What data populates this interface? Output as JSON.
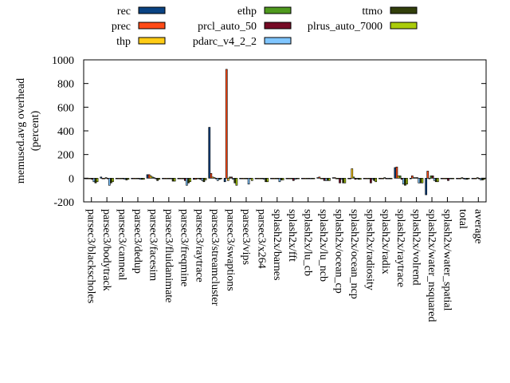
{
  "chart_data": {
    "type": "bar",
    "title": "",
    "xlabel": "",
    "ylabel": "memused.avg overhead\n(percent)",
    "ylabel_lines": [
      "memused.avg overhead",
      "(percent)"
    ],
    "ylim": [
      -200,
      1000
    ],
    "yticks": [
      -200,
      0,
      200,
      400,
      600,
      800,
      1000
    ],
    "grid": false,
    "legend_position": "top",
    "categories": [
      "parsec3/blackscholes",
      "parsec3/bodytrack",
      "parsec3/canneal",
      "parsec3/dedup",
      "parsec3/facesim",
      "parsec3/fluidanimate",
      "parsec3/freqmine",
      "parsec3/raytrace",
      "parsec3/streamcluster",
      "parsec3/swaptions",
      "parsec3/vips",
      "parsec3/x264",
      "splash2x/barnes",
      "splash2x/fft",
      "splash2x/lu_cb",
      "splash2x/lu_ncb",
      "splash2x/ocean_cp",
      "splash2x/ocean_ncp",
      "splash2x/radiosity",
      "splash2x/radix",
      "splash2x/raytrace",
      "splash2x/volrend",
      "splash2x/water_nsquared",
      "splash2x/water_spatial",
      "total",
      "average"
    ],
    "series": [
      {
        "name": "rec",
        "color": "#0a4383",
        "values": [
          0,
          10,
          0,
          -5,
          30,
          0,
          0,
          -10,
          430,
          -30,
          0,
          0,
          0,
          0,
          0,
          5,
          5,
          0,
          0,
          0,
          90,
          0,
          -140,
          0,
          0,
          0
        ]
      },
      {
        "name": "prec",
        "color": "#ff4a16",
        "values": [
          0,
          0,
          0,
          -5,
          30,
          -5,
          0,
          -10,
          40,
          920,
          0,
          0,
          -5,
          0,
          0,
          10,
          5,
          0,
          0,
          0,
          95,
          20,
          60,
          0,
          0,
          0
        ]
      },
      {
        "name": "thp",
        "color": "#ffcc16",
        "values": [
          0,
          -5,
          -5,
          -5,
          20,
          -5,
          0,
          -5,
          10,
          -20,
          0,
          0,
          0,
          0,
          0,
          0,
          0,
          80,
          0,
          0,
          20,
          5,
          0,
          0,
          0,
          0
        ]
      },
      {
        "name": "ethp",
        "color": "#4f9a1e",
        "values": [
          0,
          5,
          -5,
          -5,
          10,
          0,
          0,
          0,
          5,
          10,
          0,
          0,
          0,
          0,
          0,
          0,
          0,
          10,
          0,
          5,
          20,
          5,
          20,
          0,
          5,
          5
        ]
      },
      {
        "name": "prcl_auto_50",
        "color": "#760a25",
        "values": [
          -10,
          0,
          0,
          -5,
          5,
          0,
          -20,
          -10,
          -5,
          10,
          0,
          0,
          0,
          -20,
          0,
          -20,
          -40,
          -10,
          -40,
          0,
          -10,
          5,
          20,
          -20,
          0,
          0
        ]
      },
      {
        "name": "pdarc_v4_2_2",
        "color": "#80c6ff",
        "values": [
          -30,
          -60,
          -10,
          -10,
          -5,
          -5,
          -60,
          -20,
          -20,
          -10,
          -50,
          -10,
          -30,
          -10,
          0,
          -20,
          -10,
          -5,
          -10,
          0,
          -50,
          -40,
          -20,
          0,
          -10,
          -15
        ]
      },
      {
        "name": "ttmo",
        "color": "#323f0b",
        "values": [
          -40,
          -40,
          -15,
          -10,
          -20,
          -25,
          -40,
          -30,
          -10,
          -40,
          0,
          -30,
          -15,
          0,
          0,
          -20,
          -40,
          -10,
          -20,
          0,
          -60,
          -40,
          -30,
          0,
          -10,
          -15
        ]
      },
      {
        "name": "plrus_auto_7000",
        "color": "#aacc0a",
        "values": [
          -30,
          -30,
          -10,
          -10,
          -10,
          -25,
          -30,
          -15,
          -5,
          -60,
          -20,
          -30,
          -15,
          0,
          0,
          -20,
          -40,
          -10,
          -30,
          0,
          -50,
          -40,
          -30,
          0,
          -5,
          -10
        ]
      }
    ]
  }
}
